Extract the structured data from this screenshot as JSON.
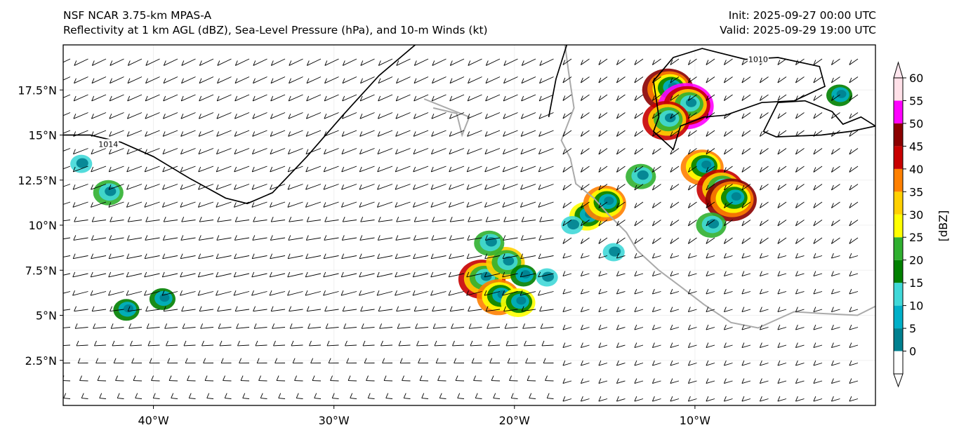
{
  "header": {
    "left_line1": "NSF NCAR 3.75-km MPAS-A",
    "left_line2": "Reflectivity at 1 km AGL (dBZ), Sea-Level Pressure (hPa), and 10-m Winds (kt)",
    "right_line1": "Init: 2025-09-27 00:00 UTC",
    "right_line2": "Valid: 2025-09-29 19:00 UTC"
  },
  "map": {
    "lon_range": [
      -45,
      0
    ],
    "lat_range": [
      0,
      20
    ],
    "lat_ticks": [
      {
        "value": 2.5,
        "label": "2.5°N"
      },
      {
        "value": 5,
        "label": "5°N"
      },
      {
        "value": 7.5,
        "label": "7.5°N"
      },
      {
        "value": 10,
        "label": "10°N"
      },
      {
        "value": 12.5,
        "label": "12.5°N"
      },
      {
        "value": 15,
        "label": "15°N"
      },
      {
        "value": 17.5,
        "label": "17.5°N"
      }
    ],
    "lon_ticks": [
      {
        "value": -40,
        "label": "40°W"
      },
      {
        "value": -30,
        "label": "30°W"
      },
      {
        "value": -20,
        "label": "20°W"
      },
      {
        "value": -10,
        "label": "10°W"
      }
    ],
    "isobars": [
      {
        "label": "1014",
        "label_lon": -42.5,
        "label_lat": 14.5,
        "points": [
          [
            -45,
            15
          ],
          [
            -43.5,
            15
          ],
          [
            -41.8,
            14.6
          ],
          [
            -40,
            13.8
          ],
          [
            -38,
            12.6
          ],
          [
            -36,
            11.5
          ],
          [
            -34.8,
            11.2
          ],
          [
            -33.4,
            11.8
          ],
          [
            -31.5,
            13.8
          ],
          [
            -29.5,
            16.1
          ],
          [
            -27.5,
            18.3
          ],
          [
            -25.5,
            20
          ]
        ]
      },
      {
        "label": "",
        "points": [
          [
            -17.1,
            20
          ],
          [
            -17.7,
            18.1
          ],
          [
            -18.1,
            16
          ]
        ]
      },
      {
        "label": "1010",
        "label_lon": -6.5,
        "label_lat": 19.2,
        "points": [
          [
            -12,
            16
          ],
          [
            -12.3,
            18
          ],
          [
            -11.2,
            19.3
          ],
          [
            -9.6,
            19.8
          ],
          [
            -7.2,
            19.2
          ],
          [
            -5.4,
            19.3
          ],
          [
            -3.1,
            18.8
          ],
          [
            -2.8,
            17.7
          ],
          [
            -4.5,
            16.9
          ],
          [
            -6.3,
            16.8
          ],
          [
            -8.3,
            16.1
          ],
          [
            -9.5,
            16
          ],
          [
            -10.8,
            15.5
          ],
          [
            -11.2,
            14.2
          ],
          [
            -12.3,
            15.2
          ],
          [
            -12,
            16
          ]
        ]
      },
      {
        "label": "",
        "points": [
          [
            0,
            15.5
          ],
          [
            -0.8,
            16
          ],
          [
            -1.8,
            15.6
          ],
          [
            -2.4,
            16.3
          ],
          [
            -3.9,
            16.9
          ],
          [
            -5.4,
            16.8
          ],
          [
            -6.2,
            15.2
          ],
          [
            -5.5,
            14.9
          ],
          [
            -3,
            15
          ],
          [
            -1.4,
            15.2
          ],
          [
            0,
            15.5
          ]
        ]
      }
    ],
    "coastline": [
      [
        -17.2,
        20
      ],
      [
        -17.0,
        18.5
      ],
      [
        -16.7,
        16.5
      ],
      [
        -17.4,
        14.7
      ],
      [
        -16.9,
        13.7
      ],
      [
        -16.6,
        12.3
      ],
      [
        -15.6,
        11.5
      ],
      [
        -14.8,
        10.6
      ],
      [
        -13.8,
        9.6
      ],
      [
        -13.2,
        8.6
      ],
      [
        -12.0,
        7.5
      ],
      [
        -10.8,
        6.6
      ],
      [
        -9.5,
        5.6
      ],
      [
        -8.0,
        4.6
      ],
      [
        -6.5,
        4.3
      ],
      [
        -4.5,
        5.2
      ],
      [
        -3.0,
        5.1
      ],
      [
        -1.0,
        5.0
      ],
      [
        0,
        5.5
      ]
    ],
    "cape_verde": [
      [
        -24.5,
        16.5
      ],
      [
        -23.2,
        16.2
      ],
      [
        -22.9,
        15.0
      ],
      [
        -22.5,
        16.0
      ],
      [
        -25.0,
        17.0
      ]
    ],
    "reflectivity_cells": [
      {
        "lon": -21.8,
        "lat": 7.0,
        "dbz": 40
      },
      {
        "lon": -20.5,
        "lat": 7.9,
        "dbz": 30
      },
      {
        "lon": -20.9,
        "lat": 6.0,
        "dbz": 35
      },
      {
        "lon": -19.8,
        "lat": 5.7,
        "dbz": 25
      },
      {
        "lon": -19.5,
        "lat": 7.2,
        "dbz": 15
      },
      {
        "lon": -18.2,
        "lat": 7.1,
        "dbz": 10
      },
      {
        "lon": -21.4,
        "lat": 9.0,
        "dbz": 20
      },
      {
        "lon": -16.0,
        "lat": 10.5,
        "dbz": 25
      },
      {
        "lon": -15.0,
        "lat": 11.2,
        "dbz": 35
      },
      {
        "lon": -16.8,
        "lat": 10.0,
        "dbz": 10
      },
      {
        "lon": -13.0,
        "lat": 12.7,
        "dbz": 20
      },
      {
        "lon": -11.5,
        "lat": 17.5,
        "dbz": 45
      },
      {
        "lon": -10.5,
        "lat": 16.6,
        "dbz": 50
      },
      {
        "lon": -11.6,
        "lat": 15.8,
        "dbz": 40
      },
      {
        "lon": -9.6,
        "lat": 13.2,
        "dbz": 35
      },
      {
        "lon": -8.6,
        "lat": 12.0,
        "dbz": 40
      },
      {
        "lon": -8.0,
        "lat": 11.4,
        "dbz": 45
      },
      {
        "lon": -9.1,
        "lat": 10.0,
        "dbz": 20
      },
      {
        "lon": -14.5,
        "lat": 8.5,
        "dbz": 10
      },
      {
        "lon": -41.5,
        "lat": 5.3,
        "dbz": 15
      },
      {
        "lon": -39.5,
        "lat": 5.9,
        "dbz": 15
      },
      {
        "lon": -42.5,
        "lat": 11.8,
        "dbz": 20
      },
      {
        "lon": -44.0,
        "lat": 13.4,
        "dbz": 10
      },
      {
        "lon": -2.0,
        "lat": 17.2,
        "dbz": 15
      }
    ]
  },
  "colorbar": {
    "label": "[dBZ]",
    "levels": [
      0,
      5,
      10,
      15,
      20,
      25,
      30,
      35,
      40,
      45,
      50,
      55,
      60
    ],
    "colors": [
      "#00808f",
      "#00b0c8",
      "#40d8d8",
      "#008000",
      "#30b030",
      "#ffff00",
      "#ffd000",
      "#ff8000",
      "#c80000",
      "#8b0000",
      "#ff00ff",
      "#ffe0e8"
    ],
    "under_color": "#ffffff",
    "over_color": "#ffe6ee"
  },
  "colors": {
    "isobar": "#000000",
    "coastline": "#aaaaaa",
    "barb": "#000000"
  }
}
